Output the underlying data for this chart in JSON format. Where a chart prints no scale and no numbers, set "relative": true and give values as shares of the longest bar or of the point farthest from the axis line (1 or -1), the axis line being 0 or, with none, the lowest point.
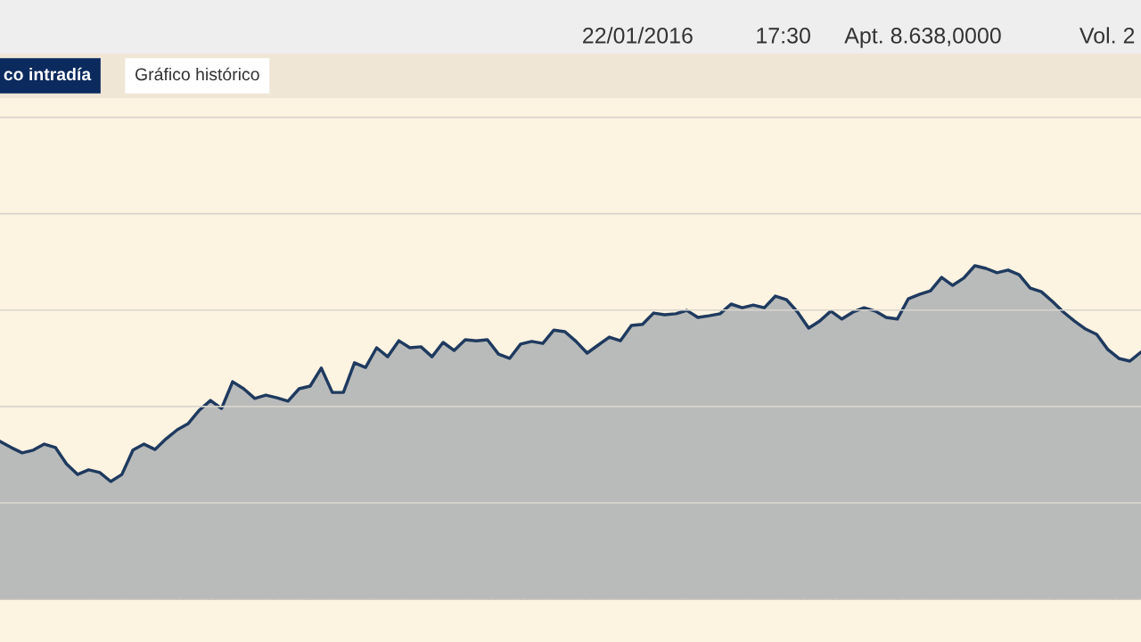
{
  "chart_data": {
    "type": "area",
    "relative": true,
    "grid": "y",
    "annotations": [
      "co intradía",
      "Gráfico histórico",
      "22/01/2016",
      "17:30",
      "Apt. 8.638,0000",
      "Vol. 2"
    ],
    "categories": [
      null,
      null,
      null,
      null,
      null,
      null,
      null,
      null,
      null,
      null,
      null,
      null,
      null,
      null,
      null,
      null,
      null,
      null,
      null,
      null,
      null,
      null,
      null,
      null,
      null,
      null,
      null,
      null,
      null,
      null,
      null,
      null,
      null,
      null,
      null,
      null,
      null,
      null,
      null,
      null,
      null,
      null,
      null,
      null,
      null,
      null,
      null,
      null,
      null,
      null,
      null,
      null,
      null,
      null,
      null,
      null,
      null,
      null,
      null,
      null,
      null,
      null,
      null,
      null,
      null,
      null,
      null,
      null,
      null,
      null,
      null,
      null,
      null,
      null,
      null,
      null,
      null,
      null,
      null,
      null,
      null,
      null,
      null,
      null,
      null,
      null,
      null,
      null,
      null,
      null,
      null,
      null,
      null,
      null,
      null,
      null,
      null,
      null,
      null,
      null,
      null,
      null,
      null,
      null
    ],
    "series": [
      {
        "color": "#1f3a5f",
        "values": [
          0.473,
          0.455,
          0.439,
          0.447,
          0.465,
          0.455,
          0.406,
          0.374,
          0.388,
          0.38,
          0.353,
          0.374,
          0.447,
          0.465,
          0.449,
          0.481,
          0.508,
          0.527,
          0.567,
          0.596,
          0.572,
          0.652,
          0.631,
          0.602,
          0.612,
          0.604,
          0.594,
          0.631,
          0.639,
          0.693,
          0.62,
          0.62,
          0.709,
          0.695,
          0.754,
          0.727,
          0.775,
          0.754,
          0.757,
          0.727,
          0.77,
          0.746,
          0.778,
          0.775,
          0.778,
          0.735,
          0.722,
          0.765,
          0.773,
          0.767,
          0.807,
          0.802,
          0.773,
          0.738,
          0.762,
          0.786,
          0.775,
          0.821,
          0.824,
          0.858,
          0.853,
          0.856,
          0.866,
          0.845,
          0.85,
          0.856,
          0.885,
          0.874,
          0.882,
          0.874,
          0.909,
          0.898,
          0.861,
          0.813,
          0.834,
          0.864,
          0.84,
          0.861,
          0.874,
          0.864,
          0.845,
          0.84,
          0.901,
          0.914,
          0.925,
          0.965,
          0.941,
          0.963,
          1.0,
          0.992,
          0.979,
          0.987,
          0.973,
          0.933,
          0.922,
          0.893,
          0.861,
          0.834,
          0.81,
          0.794,
          0.749,
          0.722,
          0.714,
          0.741
        ]
      }
    ]
  }
}
